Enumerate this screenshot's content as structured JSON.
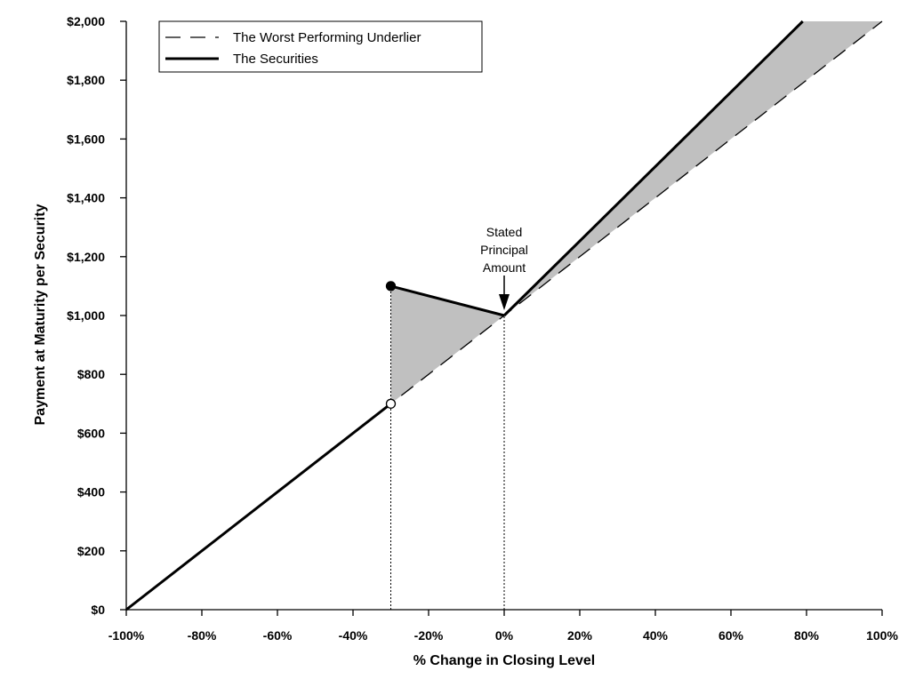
{
  "chart_data": {
    "type": "line",
    "title": "",
    "xlabel": "% Change in Closing Level",
    "ylabel": "Payment at Maturity per Security",
    "xlim": [
      -100,
      100
    ],
    "ylim": [
      0,
      2000
    ],
    "x_ticks": [
      -100,
      -80,
      -60,
      -40,
      -20,
      0,
      20,
      40,
      60,
      80,
      100
    ],
    "x_tick_labels": [
      "-100%",
      "-80%",
      "-60%",
      "-40%",
      "-20%",
      "0%",
      "20%",
      "40%",
      "60%",
      "80%",
      "100%"
    ],
    "y_ticks": [
      0,
      200,
      400,
      600,
      800,
      1000,
      1200,
      1400,
      1600,
      1800,
      2000
    ],
    "y_tick_labels": [
      "$0",
      "$200",
      "$400",
      "$600",
      "$800",
      "$1,000",
      "$1,200",
      "$1,400",
      "$1,600",
      "$1,800",
      "$2,000"
    ],
    "grid": false,
    "legend_position": "top-left",
    "series": [
      {
        "name": "The Worst Performing Underlier",
        "style": "dashed",
        "color": "#000000",
        "x": [
          -100,
          100
        ],
        "y": [
          0,
          2000
        ]
      },
      {
        "name": "The Securities",
        "style": "solid",
        "color": "#000000",
        "segments": [
          {
            "x": [
              -100,
              -30
            ],
            "y": [
              0,
              700
            ]
          },
          {
            "x": [
              -30,
              0
            ],
            "y": [
              1100,
              1000
            ]
          },
          {
            "x": [
              0,
              79
            ],
            "y": [
              1000,
              2000
            ]
          }
        ]
      }
    ],
    "shaded_regions": [
      {
        "x": [
          -30,
          -30,
          0
        ],
        "y": [
          700,
          1100,
          1000
        ],
        "color": "#c0c0c0"
      },
      {
        "x": [
          0,
          79,
          100
        ],
        "y": [
          1000,
          2000,
          2000
        ],
        "color": "#c0c0c0"
      }
    ],
    "markers": [
      {
        "x": -30,
        "y": 1100,
        "fill": "filled"
      },
      {
        "x": -30,
        "y": 700,
        "fill": "open"
      }
    ],
    "reference_lines": [
      {
        "x": -30,
        "style": "dotted"
      },
      {
        "x": 0,
        "style": "dotted"
      }
    ],
    "annotations": [
      {
        "lines": [
          "Stated",
          "Principal",
          "Amount"
        ],
        "x": 0,
        "y": 1000,
        "arrow": true
      }
    ]
  }
}
